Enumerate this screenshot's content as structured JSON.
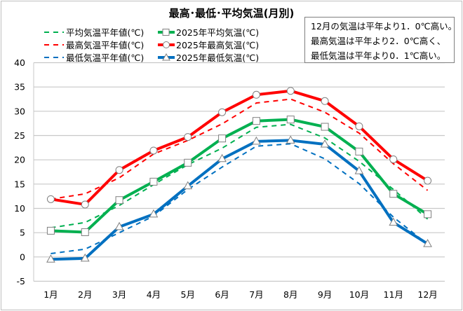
{
  "chart_data": {
    "type": "line",
    "title": "最高･最低･平均気温(月別)",
    "categories": [
      "1月",
      "2月",
      "3月",
      "4月",
      "5月",
      "6月",
      "7月",
      "8月",
      "9月",
      "10月",
      "11月",
      "12月"
    ],
    "ylim": [
      -5,
      40
    ],
    "yticks": [
      -5,
      0,
      5,
      10,
      15,
      20,
      25,
      30,
      35,
      40
    ],
    "grid": true,
    "legend_position": "top-left",
    "series": [
      {
        "name": "平均気温平年値(℃)",
        "color": "#00b050",
        "style": "dashed",
        "marker": "none",
        "values": [
          6.0,
          7.1,
          10.6,
          14.9,
          19.0,
          22.4,
          26.7,
          27.3,
          24.5,
          19.7,
          13.9,
          7.8
        ]
      },
      {
        "name": "2025年平均気温(℃)",
        "color": "#00b050",
        "style": "solid",
        "marker": "square",
        "values": [
          5.4,
          5.1,
          11.7,
          15.5,
          19.4,
          24.4,
          28.0,
          28.3,
          26.8,
          21.7,
          13.0,
          8.8
        ]
      },
      {
        "name": "最高気温平年値(℃)",
        "color": "#ff0000",
        "style": "dashed",
        "marker": "none",
        "values": [
          11.9,
          13.0,
          16.3,
          21.2,
          24.0,
          27.4,
          31.7,
          32.5,
          29.8,
          25.5,
          19.2,
          13.7
        ]
      },
      {
        "name": "2025年最高気温(℃)",
        "color": "#ff0000",
        "style": "solid",
        "marker": "circle",
        "values": [
          11.9,
          10.8,
          17.9,
          21.9,
          24.7,
          29.8,
          33.4,
          34.2,
          32.1,
          26.9,
          20.1,
          15.7
        ]
      },
      {
        "name": "最低気温平年値(℃)",
        "color": "#0070c0",
        "style": "dashed",
        "marker": "none",
        "values": [
          0.7,
          1.6,
          5.0,
          8.4,
          13.9,
          18.5,
          22.8,
          23.3,
          20.2,
          15.1,
          8.2,
          2.6
        ]
      },
      {
        "name": "2025年最低気温(℃)",
        "color": "#0070c0",
        "style": "solid",
        "marker": "triangle",
        "values": [
          -0.5,
          -0.3,
          6.2,
          8.8,
          14.6,
          20.2,
          23.8,
          24.0,
          23.2,
          17.7,
          7.1,
          2.7
        ]
      }
    ]
  },
  "note": {
    "lines": [
      "12月の気温は平年より1．0℃高い。",
      "最高気温は平年より2．0℃高く、",
      "最低気温は平年より0．1℃高い。"
    ]
  }
}
